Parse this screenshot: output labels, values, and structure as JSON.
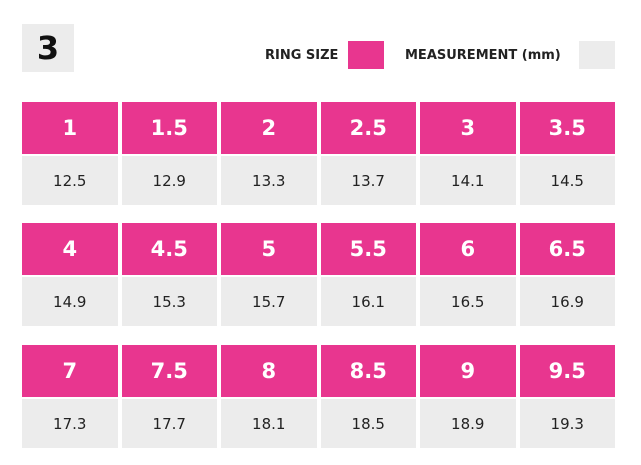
{
  "badge": {
    "label": "3"
  },
  "legend": {
    "ring_size_label": "RING SIZE",
    "measurement_label": "MEASUREMENT (mm)",
    "ring_size_color": "#e8368f",
    "measurement_color": "#ececec"
  },
  "groups": [
    {
      "sizes": [
        "1",
        "1.5",
        "2",
        "2.5",
        "3",
        "3.5"
      ],
      "measurements": [
        "12.5",
        "12.9",
        "13.3",
        "13.7",
        "14.1",
        "14.5"
      ]
    },
    {
      "sizes": [
        "4",
        "4.5",
        "5",
        "5.5",
        "6",
        "6.5"
      ],
      "measurements": [
        "14.9",
        "15.3",
        "15.7",
        "16.1",
        "16.5",
        "16.9"
      ]
    },
    {
      "sizes": [
        "7",
        "7.5",
        "8",
        "8.5",
        "9",
        "9.5"
      ],
      "measurements": [
        "17.3",
        "17.7",
        "18.1",
        "18.5",
        "18.9",
        "19.3"
      ]
    }
  ]
}
